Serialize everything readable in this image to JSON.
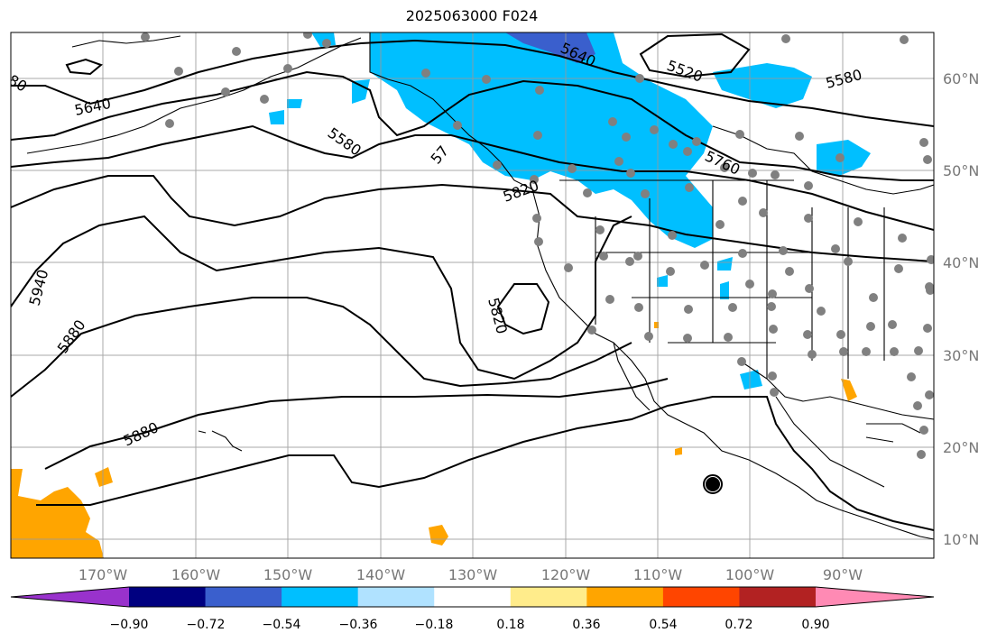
{
  "title": "2025063000 F024",
  "map": {
    "projection": "PlateCarree",
    "lon_range": [
      -180,
      -80
    ],
    "lat_range": [
      8,
      65
    ],
    "gridlines": true,
    "longitude_labels": [
      "170°W",
      "160°W",
      "150°W",
      "140°W",
      "130°W",
      "120°W",
      "110°W",
      "100°W",
      "90°W"
    ],
    "latitude_labels": [
      "60°N",
      "50°N",
      "40°N",
      "30°N",
      "20°N",
      "10°N"
    ],
    "contour_labels": [
      "80",
      "5640",
      "5580",
      "5640",
      "5520",
      "5580",
      "5760",
      "57",
      "5820",
      "5940",
      "5880",
      "5820",
      "5880"
    ],
    "fill_colors": {
      "negative_light": "#00bfff",
      "negative_mid": "#3a5fcd",
      "positive_light": "#ffa500"
    },
    "station_marker_color": "#808080",
    "marker_symbol": "hurricane-symbol"
  },
  "colorbar": {
    "tick_labels": [
      "−0.90",
      "−0.72",
      "−0.54",
      "−0.36",
      "−0.18",
      "0.18",
      "0.36",
      "0.54",
      "0.72",
      "0.90"
    ],
    "colors": [
      "#9932cc",
      "#000080",
      "#3a5fcd",
      "#00bfff",
      "#b0e2ff",
      "#ffffff",
      "#ffec8b",
      "#ffa500",
      "#ff4500",
      "#b22222",
      "#ff8ab4"
    ]
  }
}
